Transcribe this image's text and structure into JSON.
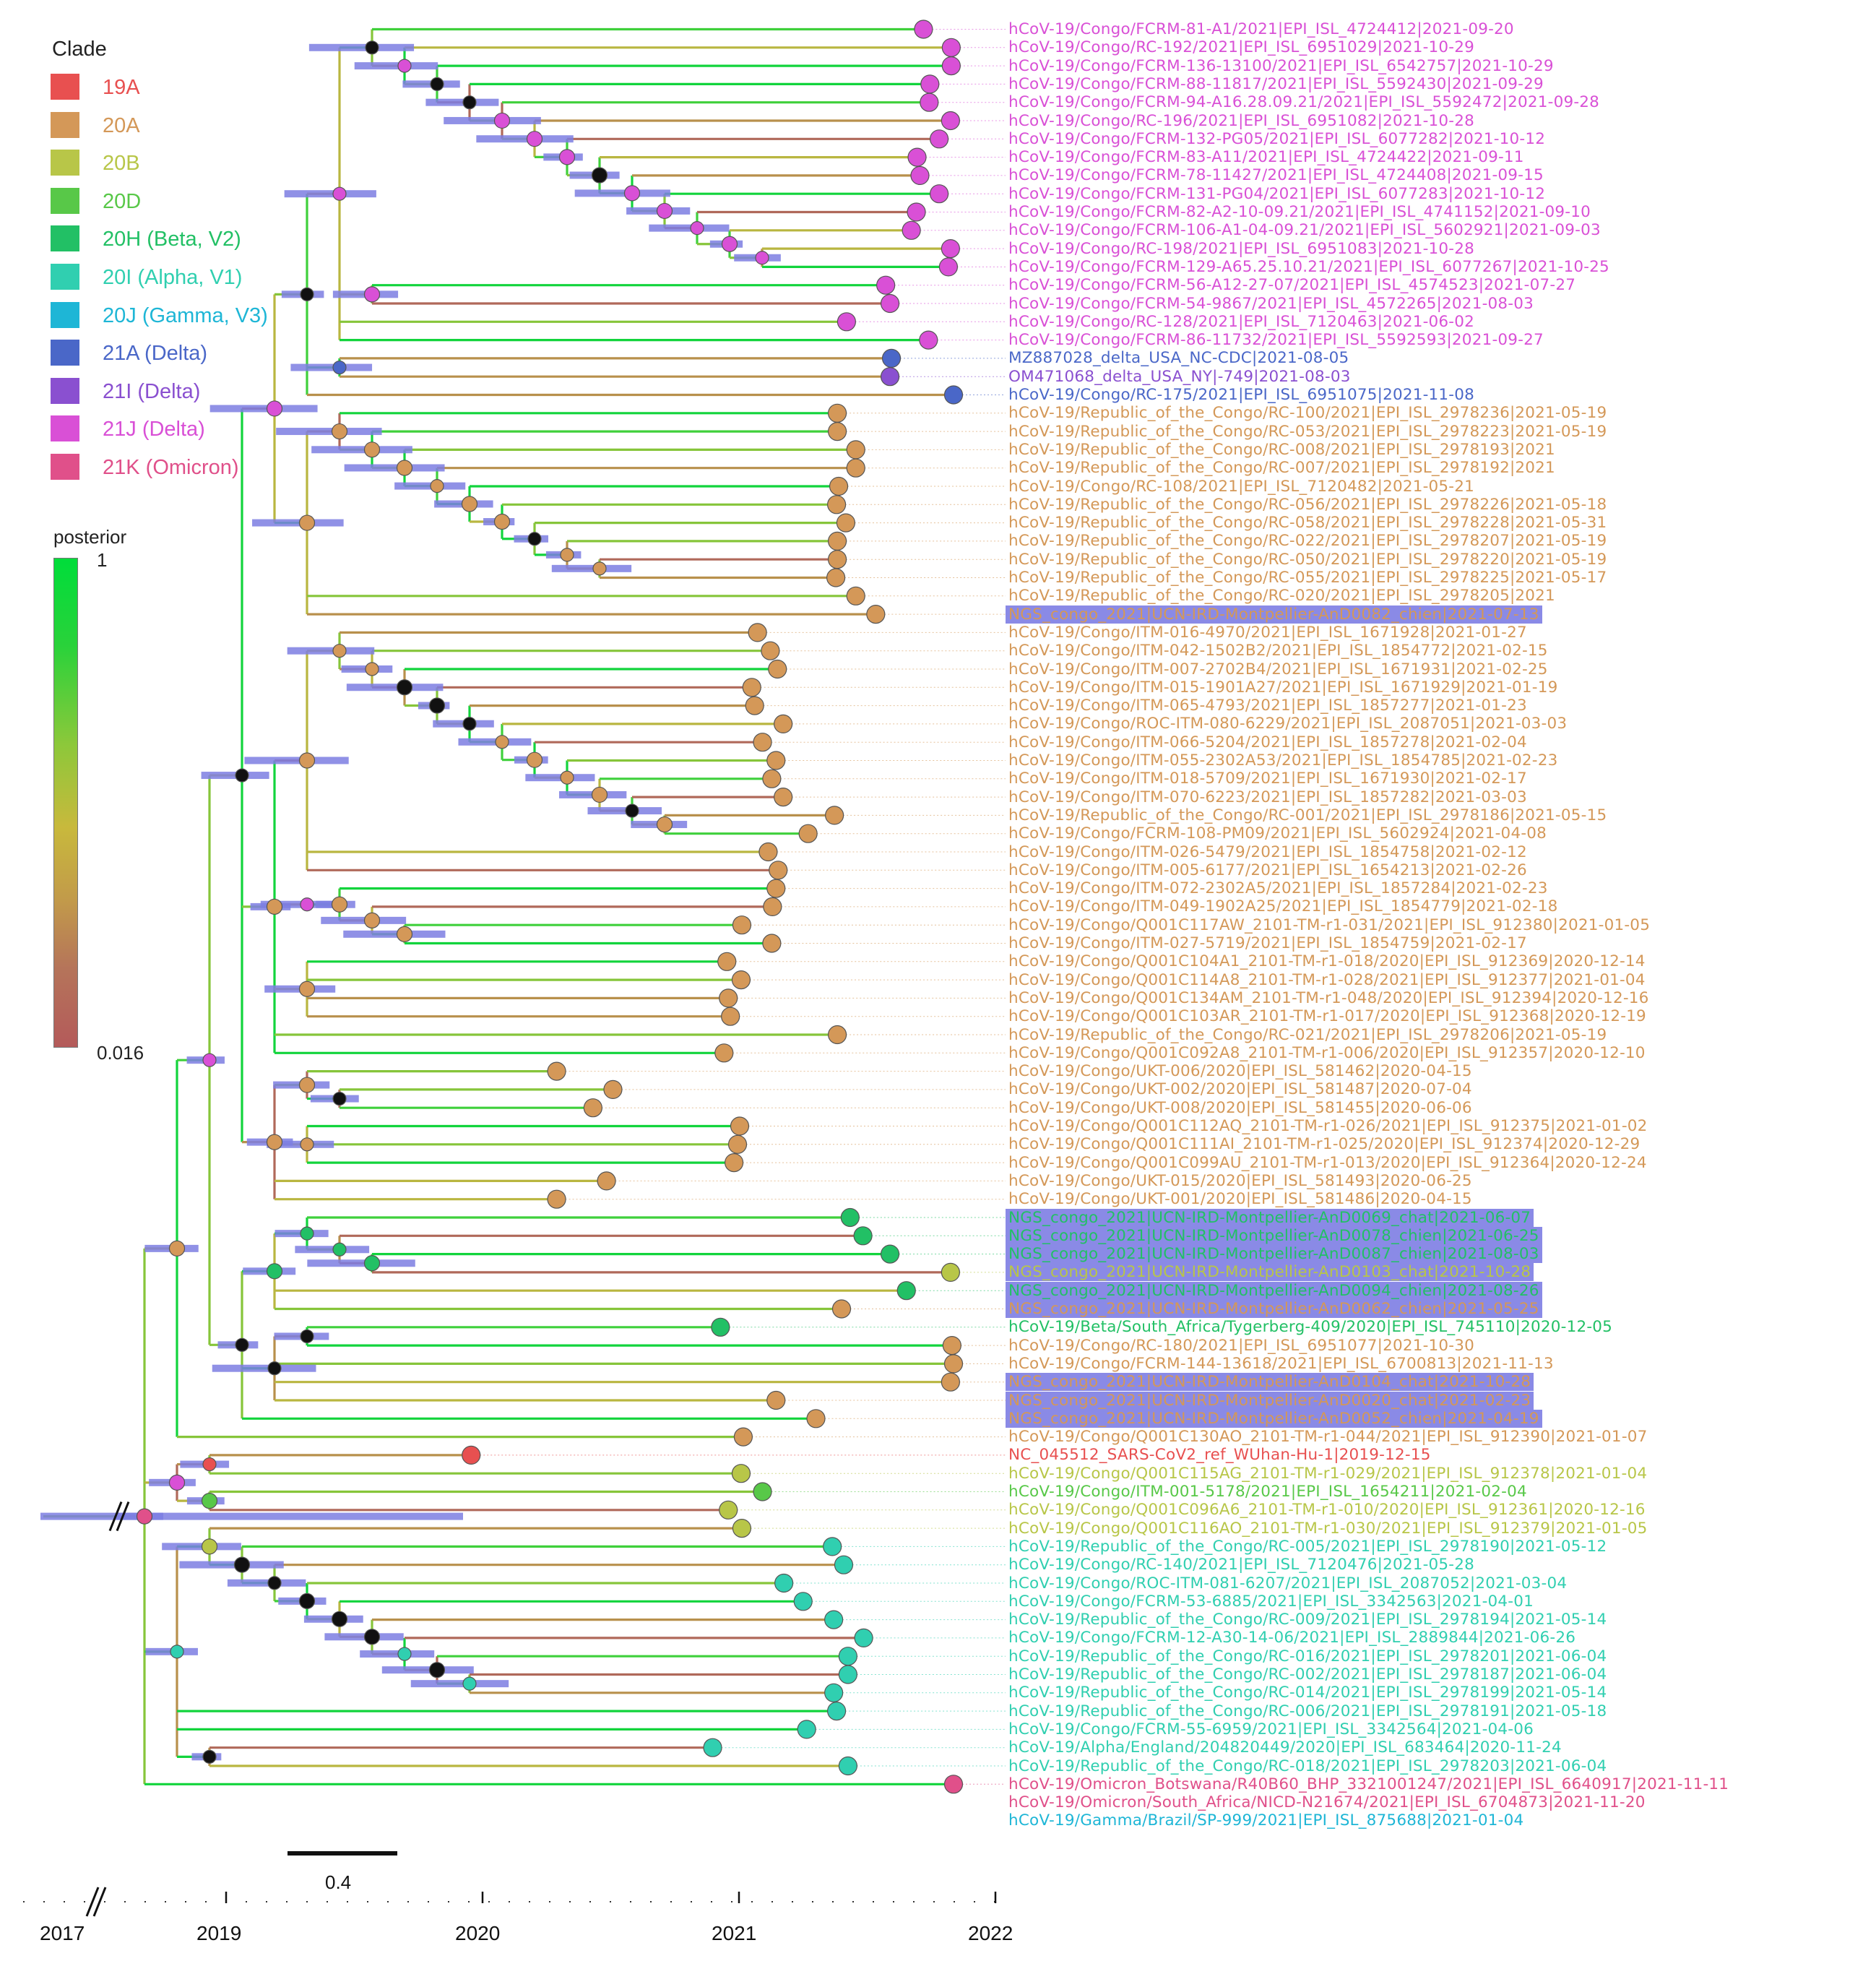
{
  "legend": {
    "clade_title": "Clade",
    "clades": [
      {
        "label": "19A",
        "color": "#e85050"
      },
      {
        "label": "20A",
        "color": "#d49858"
      },
      {
        "label": "20B",
        "color": "#b8c648"
      },
      {
        "label": "20D",
        "color": "#58c848"
      },
      {
        "label": "20H (Beta, V2)",
        "color": "#22c065"
      },
      {
        "label": "20I (Alpha, V1)",
        "color": "#30cfb0"
      },
      {
        "label": "20J (Gamma, V3)",
        "color": "#1eb6d6"
      },
      {
        "label": "21A (Delta)",
        "color": "#4a67c8"
      },
      {
        "label": "21I (Delta)",
        "color": "#8a50d0"
      },
      {
        "label": "21J (Delta)",
        "color": "#d950d6"
      },
      {
        "label": "21K (Omicron)",
        "color": "#e0508a"
      }
    ],
    "posterior_title": "posterior",
    "posterior_max": "1",
    "posterior_min": "0.016"
  },
  "axis": {
    "years": [
      "2017",
      "2019",
      "2020",
      "2021",
      "2022"
    ],
    "scale_bar_label": "0.4"
  },
  "leaves": [
    {
      "label": "hCoV-19/Congo/FCRM-81-A1/2021|EPI_ISL_4724412|2021-09-20",
      "clade": "21J (Delta)",
      "highlight": false
    },
    {
      "label": "hCoV-19/Congo/RC-192/2021|EPI_ISL_6951029|2021-10-29",
      "clade": "21J (Delta)",
      "highlight": false
    },
    {
      "label": "hCoV-19/Congo/FCRM-136-13100/2021|EPI_ISL_6542757|2021-10-29",
      "clade": "21J (Delta)",
      "highlight": false
    },
    {
      "label": "hCoV-19/Congo/FCRM-88-11817/2021|EPI_ISL_5592430|2021-09-29",
      "clade": "21J (Delta)",
      "highlight": false
    },
    {
      "label": "hCoV-19/Congo/FCRM-94-A16.28.09.21/2021|EPI_ISL_5592472|2021-09-28",
      "clade": "21J (Delta)",
      "highlight": false
    },
    {
      "label": "hCoV-19/Congo/RC-196/2021|EPI_ISL_6951082|2021-10-28",
      "clade": "21J (Delta)",
      "highlight": false
    },
    {
      "label": "hCoV-19/Congo/FCRM-132-PG05/2021|EPI_ISL_6077282|2021-10-12",
      "clade": "21J (Delta)",
      "highlight": false
    },
    {
      "label": "hCoV-19/Congo/FCRM-83-A11/2021|EPI_ISL_4724422|2021-09-11",
      "clade": "21J (Delta)",
      "highlight": false
    },
    {
      "label": "hCoV-19/Congo/FCRM-78-11427/2021|EPI_ISL_4724408|2021-09-15",
      "clade": "21J (Delta)",
      "highlight": false
    },
    {
      "label": "hCoV-19/Congo/FCRM-131-PG04/2021|EPI_ISL_6077283|2021-10-12",
      "clade": "21J (Delta)",
      "highlight": false
    },
    {
      "label": "hCoV-19/Congo/FCRM-82-A2-10-09.21/2021|EPI_ISL_4741152|2021-09-10",
      "clade": "21J (Delta)",
      "highlight": false
    },
    {
      "label": "hCoV-19/Congo/FCRM-106-A1-04-09.21/2021|EPI_ISL_5602921|2021-09-03",
      "clade": "21J (Delta)",
      "highlight": false
    },
    {
      "label": "hCoV-19/Congo/RC-198/2021|EPI_ISL_6951083|2021-10-28",
      "clade": "21J (Delta)",
      "highlight": false
    },
    {
      "label": "hCoV-19/Congo/FCRM-129-A65.25.10.21/2021|EPI_ISL_6077267|2021-10-25",
      "clade": "21J (Delta)",
      "highlight": false
    },
    {
      "label": "hCoV-19/Congo/FCRM-56-A12-27-07/2021|EPI_ISL_4574523|2021-07-27",
      "clade": "21J (Delta)",
      "highlight": false
    },
    {
      "label": "hCoV-19/Congo/FCRM-54-9867/2021|EPI_ISL_4572265|2021-08-03",
      "clade": "21J (Delta)",
      "highlight": false
    },
    {
      "label": "hCoV-19/Congo/RC-128/2021|EPI_ISL_7120463|2021-06-02",
      "clade": "21J (Delta)",
      "highlight": false
    },
    {
      "label": "hCoV-19/Congo/FCRM-86-11732/2021|EPI_ISL_5592593|2021-09-27",
      "clade": "21J (Delta)",
      "highlight": false
    },
    {
      "label": "MZ887028_delta_USA_NC-CDC|2021-08-05",
      "clade": "21A (Delta)",
      "highlight": false
    },
    {
      "label": "OM471068_delta_USA_NY|-749|2021-08-03",
      "clade": "21I (Delta)",
      "highlight": false
    },
    {
      "label": "hCoV-19/Congo/RC-175/2021|EPI_ISL_6951075|2021-11-08",
      "clade": "21A (Delta)",
      "highlight": false
    },
    {
      "label": "hCoV-19/Republic_of_the_Congo/RC-100/2021|EPI_ISL_2978236|2021-05-19",
      "clade": "20A",
      "highlight": false
    },
    {
      "label": "hCoV-19/Republic_of_the_Congo/RC-053/2021|EPI_ISL_2978223|2021-05-19",
      "clade": "20A",
      "highlight": false
    },
    {
      "label": "hCoV-19/Republic_of_the_Congo/RC-008/2021|EPI_ISL_2978193|2021",
      "clade": "20A",
      "highlight": false
    },
    {
      "label": "hCoV-19/Republic_of_the_Congo/RC-007/2021|EPI_ISL_2978192|2021",
      "clade": "20A",
      "highlight": false
    },
    {
      "label": "hCoV-19/Congo/RC-108/2021|EPI_ISL_7120482|2021-05-21",
      "clade": "20A",
      "highlight": false
    },
    {
      "label": "hCoV-19/Republic_of_the_Congo/RC-056/2021|EPI_ISL_2978226|2021-05-18",
      "clade": "20A",
      "highlight": false
    },
    {
      "label": "hCoV-19/Republic_of_the_Congo/RC-058/2021|EPI_ISL_2978228|2021-05-31",
      "clade": "20A",
      "highlight": false
    },
    {
      "label": "hCoV-19/Republic_of_the_Congo/RC-022/2021|EPI_ISL_2978207|2021-05-19",
      "clade": "20A",
      "highlight": false
    },
    {
      "label": "hCoV-19/Republic_of_the_Congo/RC-050/2021|EPI_ISL_2978220|2021-05-19",
      "clade": "20A",
      "highlight": false
    },
    {
      "label": "hCoV-19/Republic_of_the_Congo/RC-055/2021|EPI_ISL_2978225|2021-05-17",
      "clade": "20A",
      "highlight": false
    },
    {
      "label": "hCoV-19/Republic_of_the_Congo/RC-020/2021|EPI_ISL_2978205|2021",
      "clade": "20A",
      "highlight": false
    },
    {
      "label": "NGS_congo_2021|UCN-IRD-Montpellier-AnD0082_chien|2021-07-13",
      "clade": "20A",
      "highlight": true
    },
    {
      "label": "hCoV-19/Congo/ITM-016-4970/2021|EPI_ISL_1671928|2021-01-27",
      "clade": "20A",
      "highlight": false
    },
    {
      "label": "hCoV-19/Congo/ITM-042-1502B2/2021|EPI_ISL_1854772|2021-02-15",
      "clade": "20A",
      "highlight": false
    },
    {
      "label": "hCoV-19/Congo/ITM-007-2702B4/2021|EPI_ISL_1671931|2021-02-25",
      "clade": "20A",
      "highlight": false
    },
    {
      "label": "hCoV-19/Congo/ITM-015-1901A27/2021|EPI_ISL_1671929|2021-01-19",
      "clade": "20A",
      "highlight": false
    },
    {
      "label": "hCoV-19/Congo/ITM-065-4793/2021|EPI_ISL_1857277|2021-01-23",
      "clade": "20A",
      "highlight": false
    },
    {
      "label": "hCoV-19/Congo/ROC-ITM-080-6229/2021|EPI_ISL_2087051|2021-03-03",
      "clade": "20A",
      "highlight": false
    },
    {
      "label": "hCoV-19/Congo/ITM-066-5204/2021|EPI_ISL_1857278|2021-02-04",
      "clade": "20A",
      "highlight": false
    },
    {
      "label": "hCoV-19/Congo/ITM-055-2302A53/2021|EPI_ISL_1854785|2021-02-23",
      "clade": "20A",
      "highlight": false
    },
    {
      "label": "hCoV-19/Congo/ITM-018-5709/2021|EPI_ISL_1671930|2021-02-17",
      "clade": "20A",
      "highlight": false
    },
    {
      "label": "hCoV-19/Congo/ITM-070-6223/2021|EPI_ISL_1857282|2021-03-03",
      "clade": "20A",
      "highlight": false
    },
    {
      "label": "hCoV-19/Republic_of_the_Congo/RC-001/2021|EPI_ISL_2978186|2021-05-15",
      "clade": "20A",
      "highlight": false
    },
    {
      "label": "hCoV-19/Congo/FCRM-108-PM09/2021|EPI_ISL_5602924|2021-04-08",
      "clade": "20A",
      "highlight": false
    },
    {
      "label": "hCoV-19/Congo/ITM-026-5479/2021|EPI_ISL_1854758|2021-02-12",
      "clade": "20A",
      "highlight": false
    },
    {
      "label": "hCoV-19/Congo/ITM-005-6177/2021|EPI_ISL_1654213|2021-02-26",
      "clade": "20A",
      "highlight": false
    },
    {
      "label": "hCoV-19/Congo/ITM-072-2302A5/2021|EPI_ISL_1857284|2021-02-23",
      "clade": "20A",
      "highlight": false
    },
    {
      "label": "hCoV-19/Congo/ITM-049-1902A25/2021|EPI_ISL_1854779|2021-02-18",
      "clade": "20A",
      "highlight": false
    },
    {
      "label": "hCoV-19/Congo/Q001C117AW_2101-TM-r1-031/2021|EPI_ISL_912380|2021-01-05",
      "clade": "20A",
      "highlight": false
    },
    {
      "label": "hCoV-19/Congo/ITM-027-5719/2021|EPI_ISL_1854759|2021-02-17",
      "clade": "20A",
      "highlight": false
    },
    {
      "label": "hCoV-19/Congo/Q001C104A1_2101-TM-r1-018/2020|EPI_ISL_912369|2020-12-14",
      "clade": "20A",
      "highlight": false
    },
    {
      "label": "hCoV-19/Congo/Q001C114A8_2101-TM-r1-028/2021|EPI_ISL_912377|2021-01-04",
      "clade": "20A",
      "highlight": false
    },
    {
      "label": "hCoV-19/Congo/Q001C134AM_2101-TM-r1-048/2020|EPI_ISL_912394|2020-12-16",
      "clade": "20A",
      "highlight": false
    },
    {
      "label": "hCoV-19/Congo/Q001C103AR_2101-TM-r1-017/2020|EPI_ISL_912368|2020-12-19",
      "clade": "20A",
      "highlight": false
    },
    {
      "label": "hCoV-19/Republic_of_the_Congo/RC-021/2021|EPI_ISL_2978206|2021-05-19",
      "clade": "20A",
      "highlight": false
    },
    {
      "label": "hCoV-19/Congo/Q001C092A8_2101-TM-r1-006/2020|EPI_ISL_912357|2020-12-10",
      "clade": "20A",
      "highlight": false
    },
    {
      "label": "hCoV-19/Congo/UKT-006/2020|EPI_ISL_581462|2020-04-15",
      "clade": "20A",
      "highlight": false
    },
    {
      "label": "hCoV-19/Congo/UKT-002/2020|EPI_ISL_581487|2020-07-04",
      "clade": "20A",
      "highlight": false
    },
    {
      "label": "hCoV-19/Congo/UKT-008/2020|EPI_ISL_581455|2020-06-06",
      "clade": "20A",
      "highlight": false
    },
    {
      "label": "hCoV-19/Congo/Q001C112AQ_2101-TM-r1-026/2021|EPI_ISL_912375|2021-01-02",
      "clade": "20A",
      "highlight": false
    },
    {
      "label": "hCoV-19/Congo/Q001C111AI_2101-TM-r1-025/2020|EPI_ISL_912374|2020-12-29",
      "clade": "20A",
      "highlight": false
    },
    {
      "label": "hCoV-19/Congo/Q001C099AU_2101-TM-r1-013/2020|EPI_ISL_912364|2020-12-24",
      "clade": "20A",
      "highlight": false
    },
    {
      "label": "hCoV-19/Congo/UKT-015/2020|EPI_ISL_581493|2020-06-25",
      "clade": "20A",
      "highlight": false
    },
    {
      "label": "hCoV-19/Congo/UKT-001/2020|EPI_ISL_581486|2020-04-15",
      "clade": "20A",
      "highlight": false
    },
    {
      "label": "NGS_congo_2021|UCN-IRD-Montpellier-AnD0069_chat|2021-06-07",
      "clade": "20H (Beta, V2)",
      "highlight": true
    },
    {
      "label": "NGS_congo_2021|UCN-IRD-Montpellier-AnD0078_chien|2021-06-25",
      "clade": "20H (Beta, V2)",
      "highlight": true
    },
    {
      "label": "NGS_congo_2021|UCN-IRD-Montpellier-AnD0087_chien|2021-08-03",
      "clade": "20H (Beta, V2)",
      "highlight": true
    },
    {
      "label": "NGS_congo_2021|UCN-IRD-Montpellier-AnD0103_chat|2021-10-28",
      "clade": "20B",
      "highlight": true
    },
    {
      "label": "NGS_congo_2021|UCN-IRD-Montpellier-AnD0094_chien|2021-08-26",
      "clade": "20H (Beta, V2)",
      "highlight": true
    },
    {
      "label": "NGS_congo_2021|UCN-IRD-Montpellier-AnD0062_chien|2021-05-25",
      "clade": "20A",
      "highlight": true
    },
    {
      "label": "hCoV-19/Beta/South_Africa/Tygerberg-409/2020|EPI_ISL_745110|2020-12-05",
      "clade": "20H (Beta, V2)",
      "highlight": false
    },
    {
      "label": "hCoV-19/Congo/RC-180/2021|EPI_ISL_6951077|2021-10-30",
      "clade": "20A",
      "highlight": false
    },
    {
      "label": "hCoV-19/Congo/FCRM-144-13618/2021|EPI_ISL_6700813|2021-11-13",
      "clade": "20A",
      "highlight": false
    },
    {
      "label": "NGS_congo_2021|UCN-IRD-Montpellier-AnD0104_chat|2021-10-28",
      "clade": "20A",
      "highlight": true
    },
    {
      "label": "NGS_congo_2021|UCN-IRD-Montpellier-AnD0020_chat|2021-02-23",
      "clade": "20A",
      "highlight": true
    },
    {
      "label": "NGS_congo_2021|UCN-IRD-Montpellier-AnD0052_chien|2021-04-19",
      "clade": "20A",
      "highlight": true
    },
    {
      "label": "hCoV-19/Congo/Q001C130AO_2101-TM-r1-044/2021|EPI_ISL_912390|2021-01-07",
      "clade": "20A",
      "highlight": false
    },
    {
      "label": "NC_045512_SARS-CoV2_ref_WUhan-Hu-1|2019-12-15",
      "clade": "19A",
      "highlight": false
    },
    {
      "label": "hCoV-19/Congo/Q001C115AG_2101-TM-r1-029/2021|EPI_ISL_912378|2021-01-04",
      "clade": "20B",
      "highlight": false
    },
    {
      "label": "hCoV-19/Congo/ITM-001-5178/2021|EPI_ISL_1654211|2021-02-04",
      "clade": "20D",
      "highlight": false
    },
    {
      "label": "hCoV-19/Congo/Q001C096A6_2101-TM-r1-010/2020|EPI_ISL_912361|2020-12-16",
      "clade": "20B",
      "highlight": false
    },
    {
      "label": "hCoV-19/Congo/Q001C116AO_2101-TM-r1-030/2021|EPI_ISL_912379|2021-01-05",
      "clade": "20B",
      "highlight": false
    },
    {
      "label": "hCoV-19/Republic_of_the_Congo/RC-005/2021|EPI_ISL_2978190|2021-05-12",
      "clade": "20I (Alpha, V1)",
      "highlight": false
    },
    {
      "label": "hCoV-19/Congo/RC-140/2021|EPI_ISL_7120476|2021-05-28",
      "clade": "20I (Alpha, V1)",
      "highlight": false
    },
    {
      "label": "hCoV-19/Congo/ROC-ITM-081-6207/2021|EPI_ISL_2087052|2021-03-04",
      "clade": "20I (Alpha, V1)",
      "highlight": false
    },
    {
      "label": "hCoV-19/Congo/FCRM-53-6885/2021|EPI_ISL_3342563|2021-04-01",
      "clade": "20I (Alpha, V1)",
      "highlight": false
    },
    {
      "label": "hCoV-19/Republic_of_the_Congo/RC-009/2021|EPI_ISL_2978194|2021-05-14",
      "clade": "20I (Alpha, V1)",
      "highlight": false
    },
    {
      "label": "hCoV-19/Congo/FCRM-12-A30-14-06/2021|EPI_ISL_2889844|2021-06-26",
      "clade": "20I (Alpha, V1)",
      "highlight": false
    },
    {
      "label": "hCoV-19/Republic_of_the_Congo/RC-016/2021|EPI_ISL_2978201|2021-06-04",
      "clade": "20I (Alpha, V1)",
      "highlight": false
    },
    {
      "label": "hCoV-19/Republic_of_the_Congo/RC-002/2021|EPI_ISL_2978187|2021-06-04",
      "clade": "20I (Alpha, V1)",
      "highlight": false
    },
    {
      "label": "hCoV-19/Republic_of_the_Congo/RC-014/2021|EPI_ISL_2978199|2021-05-14",
      "clade": "20I (Alpha, V1)",
      "highlight": false
    },
    {
      "label": "hCoV-19/Republic_of_the_Congo/RC-006/2021|EPI_ISL_2978191|2021-05-18",
      "clade": "20I (Alpha, V1)",
      "highlight": false
    },
    {
      "label": "hCoV-19/Congo/FCRM-55-6959/2021|EPI_ISL_3342564|2021-04-06",
      "clade": "20I (Alpha, V1)",
      "highlight": false
    },
    {
      "label": "hCoV-19/Alpha/England/204820449/2020|EPI_ISL_683464|2020-11-24",
      "clade": "20I (Alpha, V1)",
      "highlight": false
    },
    {
      "label": "hCoV-19/Republic_of_the_Congo/RC-018/2021|EPI_ISL_2978203|2021-06-04",
      "clade": "20I (Alpha, V1)",
      "highlight": false
    },
    {
      "label": "hCoV-19/Omicron_Botswana/R40B60_BHP_3321001247/2021|EPI_ISL_6640917|2021-11-11",
      "clade": "21K (Omicron)",
      "highlight": false
    },
    {
      "label": "hCoV-19/Omicron/South_Africa/NICD-N21674/2021|EPI_ISL_6704873|2021-11-20",
      "clade": "21K (Omicron)",
      "highlight": false
    },
    {
      "label": "hCoV-19/Gamma/Brazil/SP-999/2021|EPI_ISL_875688|2021-01-04",
      "clade": "20J (Gamma, V3)",
      "highlight": false
    }
  ]
}
